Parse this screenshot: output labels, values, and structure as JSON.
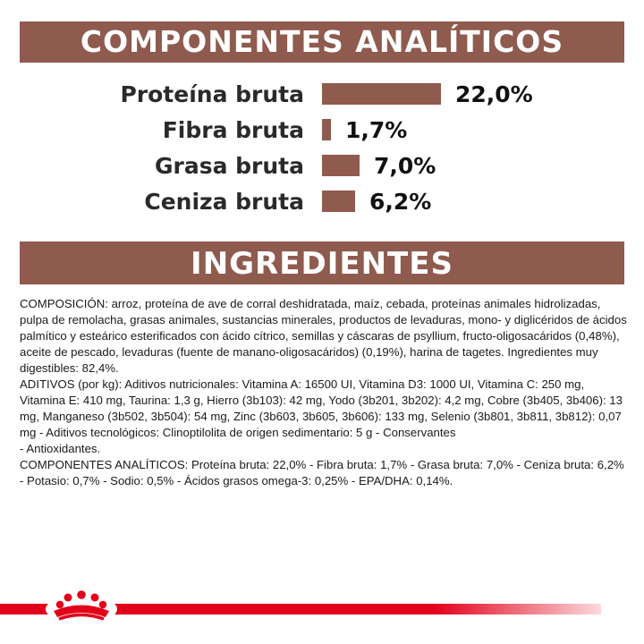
{
  "headings": {
    "analytics": "COMPONENTES ANALÍTICOS",
    "ingredients": "INGREDIENTES"
  },
  "analytics": [
    {
      "label": "Proteína bruta",
      "value_text": "22,0%",
      "value": 22.0
    },
    {
      "label": "Fibra bruta",
      "value_text": "1,7%",
      "value": 1.7
    },
    {
      "label": "Grasa bruta",
      "value_text": "7,0%",
      "value": 7.0
    },
    {
      "label": "Ceniza bruta",
      "value_text": "6,2%",
      "value": 6.2
    }
  ],
  "ingredients": {
    "composition": "COMPOSICIÓN: arroz, proteína de ave de corral deshidratada, maíz, cebada, proteínas animales hidrolizadas, pulpa de remolacha, grasas animales, sustancias minerales, productos de levaduras, mono- y diglicéridos de ácidos palmítico y esteárico esterificados con ácido cítrico, semillas y cáscaras de psyllium, fructo-oligosacáridos (0,48%), aceite de pescado, levaduras (fuente de manano-oligosacáridos) (0,19%), harina de tagetes. Ingredientes muy digestibles: 82,4%.",
    "additives": "ADITIVOS (por kg): Aditivos nutricionales: Vitamina A: 16500 UI, Vitamina D3: 1000 UI, Vitamina C: 250 mg, Vitamina E: 410 mg, Taurina: 1,3 g, Hierro (3b103): 42 mg, Yodo (3b201, 3b202): 4,2 mg, Cobre (3b405, 3b406): 13 mg, Manganeso (3b502, 3b504): 54 mg, Zinc (3b603, 3b605, 3b606): 133 mg, Selenio (3b801, 3b811, 3b812): 0,07 mg - Aditivos tecnológicos: Clinoptilolita de origen sedimentario: 5 g - Conservantes",
    "antioxidants": "- Antioxidantes.",
    "analytical": "COMPONENTES ANALÍTICOS: Proteína bruta: 22,0% - Fibra bruta: 1,7% - Grasa bruta: 7,0% - Ceniza bruta: 6,2% - Potasio: 0,7% - Sodio: 0,5% - Ácidos grasos omega-3: 0,25% - EPA/DHA: 0,14%."
  },
  "colors": {
    "banner": "#8f5b4f",
    "bar": "#8f5b4f",
    "brand_red": "#e2001a"
  },
  "footer": {
    "logo_icon": "royal-canin-crown-icon"
  }
}
